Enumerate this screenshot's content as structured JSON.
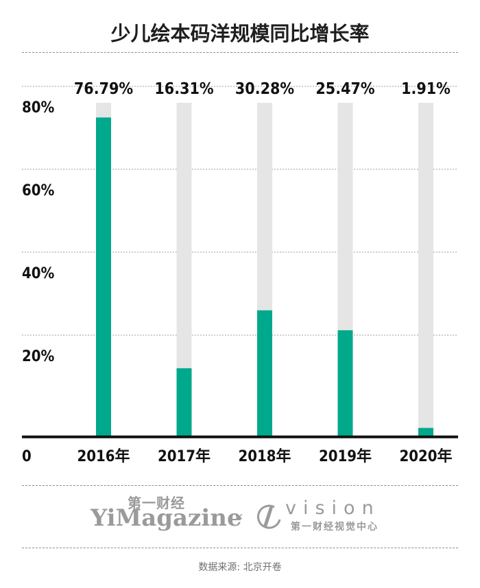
{
  "chart_data": {
    "type": "bar",
    "title": "少儿绘本码洋规模同比增长率",
    "categories": [
      "2016年",
      "2017年",
      "2018年",
      "2019年",
      "2020年"
    ],
    "values": [
      76.79,
      16.31,
      30.28,
      25.47,
      1.91
    ],
    "value_labels": [
      "76.79%",
      "16.31%",
      "30.28%",
      "25.47%",
      "1.91%"
    ],
    "y_ticks": [
      20,
      40,
      60,
      80
    ],
    "y_tick_labels": [
      "20%",
      "40%",
      "60%",
      "80%"
    ],
    "y_zero_label": "0",
    "ylim": [
      0,
      80
    ],
    "grid": true,
    "colors": {
      "bar": "#00a98b",
      "track": "#e5e5e5",
      "axis": "#111111",
      "grid": "#9a9a9a"
    }
  },
  "footer": {
    "logo_left_cn": "第一财经",
    "logo_left_en": "YiMagazine",
    "separator": "×",
    "logo_right_en": "vision",
    "logo_right_cn": "第一财经视觉中心",
    "source": "数据来源: 北京开卷"
  }
}
